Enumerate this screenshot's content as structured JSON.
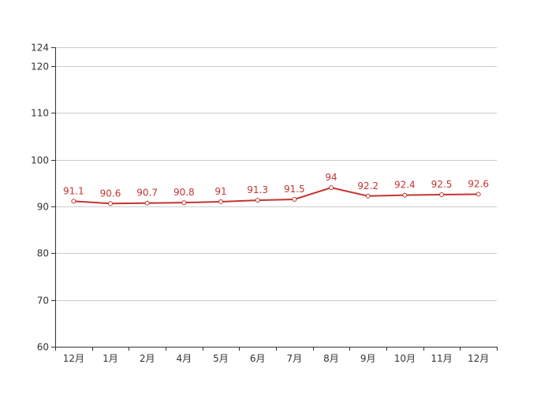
{
  "chart_data": {
    "type": "line",
    "categories": [
      "12月",
      "1月",
      "2月",
      "4月",
      "5月",
      "6月",
      "7月",
      "8月",
      "9月",
      "10月",
      "11月",
      "12月"
    ],
    "series": [
      {
        "values": [
          91.1,
          90.6,
          90.7,
          90.8,
          91,
          91.3,
          91.5,
          94,
          92.2,
          92.4,
          92.5,
          92.6
        ]
      }
    ],
    "value_labels": [
      "91.1",
      "90.6",
      "90.7",
      "90.8",
      "91",
      "91.3",
      "91.5",
      "94",
      "92.2",
      "92.4",
      "92.5",
      "92.6"
    ],
    "ylim": [
      60,
      124
    ],
    "yticks": [
      60,
      70,
      80,
      90,
      100,
      110,
      120,
      124
    ],
    "grid": true,
    "line_color": "#c23531",
    "grid_color": "#cccccc",
    "axis_color": "#333333"
  }
}
